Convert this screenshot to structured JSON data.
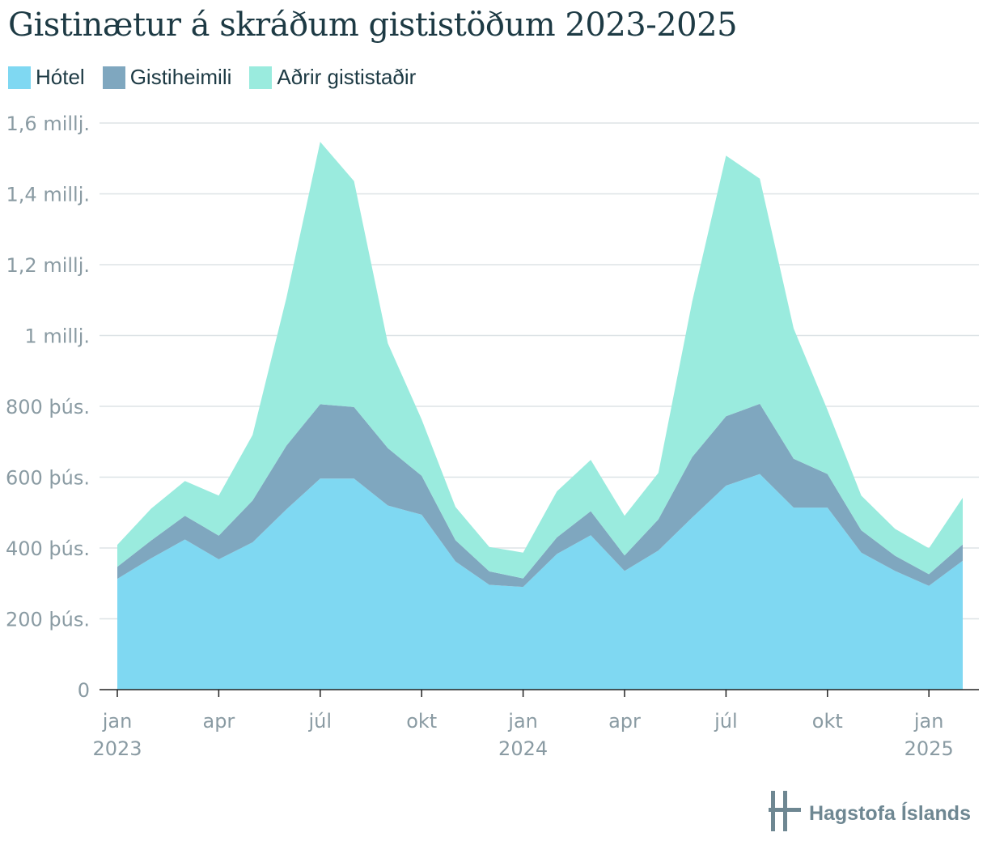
{
  "title": "Gistinætur á skráðum gististöðum 2023-2025",
  "brand": {
    "name": "Hagstofa Íslands",
    "icon": "hagstofa-logo-icon",
    "color": "#6e8792"
  },
  "chart_data": {
    "type": "area",
    "stacked": true,
    "title": "Gistinætur á skráðum gististöðum 2023-2025",
    "x": [
      "2023-01",
      "2023-02",
      "2023-03",
      "2023-04",
      "2023-05",
      "2023-06",
      "2023-07",
      "2023-08",
      "2023-09",
      "2023-10",
      "2023-11",
      "2023-12",
      "2024-01",
      "2024-02",
      "2024-03",
      "2024-04",
      "2024-05",
      "2024-06",
      "2024-07",
      "2024-08",
      "2024-09",
      "2024-10",
      "2024-11",
      "2024-12",
      "2025-01",
      "2025-02"
    ],
    "series": [
      {
        "name": "Hótel",
        "color": "#7fd8f2",
        "values": [
          313000,
          371000,
          424000,
          368000,
          416000,
          509000,
          596000,
          596000,
          520000,
          494000,
          362000,
          296000,
          290000,
          383000,
          436000,
          335000,
          393000,
          486000,
          576000,
          609000,
          514000,
          514000,
          387000,
          335000,
          293000,
          364000
        ]
      },
      {
        "name": "Gistiheimili",
        "color": "#7fa7bf",
        "values": [
          34000,
          50000,
          67000,
          67000,
          118000,
          180000,
          210000,
          202000,
          162000,
          110000,
          60000,
          38000,
          24000,
          47000,
          68000,
          44000,
          88000,
          171000,
          196000,
          198000,
          138000,
          95000,
          63000,
          43000,
          33000,
          46000
        ]
      },
      {
        "name": "Aðrir gististaðir",
        "color": "#9aebde",
        "values": [
          62000,
          90000,
          98000,
          113000,
          185000,
          417000,
          741000,
          638000,
          296000,
          159000,
          94000,
          69000,
          73000,
          130000,
          145000,
          112000,
          131000,
          439000,
          736000,
          636000,
          368000,
          181000,
          98000,
          76000,
          73000,
          132000
        ]
      }
    ],
    "ylim": [
      0,
      1600000
    ],
    "yticks": [
      0,
      200000,
      400000,
      600000,
      800000,
      1000000,
      1200000,
      1400000,
      1600000
    ],
    "ytick_labels": [
      "0",
      "200 þús.",
      "400 þús.",
      "600 þús.",
      "800 þús.",
      "1 millj.",
      "1,2 millj.",
      "1,4 millj.",
      "1,6 millj."
    ],
    "xticks": [
      {
        "x": "2023-01",
        "label": "jan",
        "year": "2023"
      },
      {
        "x": "2023-04",
        "label": "apr",
        "year": ""
      },
      {
        "x": "2023-07",
        "label": "júl",
        "year": ""
      },
      {
        "x": "2023-10",
        "label": "okt",
        "year": ""
      },
      {
        "x": "2024-01",
        "label": "jan",
        "year": "2024"
      },
      {
        "x": "2024-04",
        "label": "apr",
        "year": ""
      },
      {
        "x": "2024-07",
        "label": "júl",
        "year": ""
      },
      {
        "x": "2024-10",
        "label": "okt",
        "year": ""
      },
      {
        "x": "2025-01",
        "label": "jan",
        "year": "2025"
      }
    ],
    "grid": true,
    "legend": "top-left"
  }
}
